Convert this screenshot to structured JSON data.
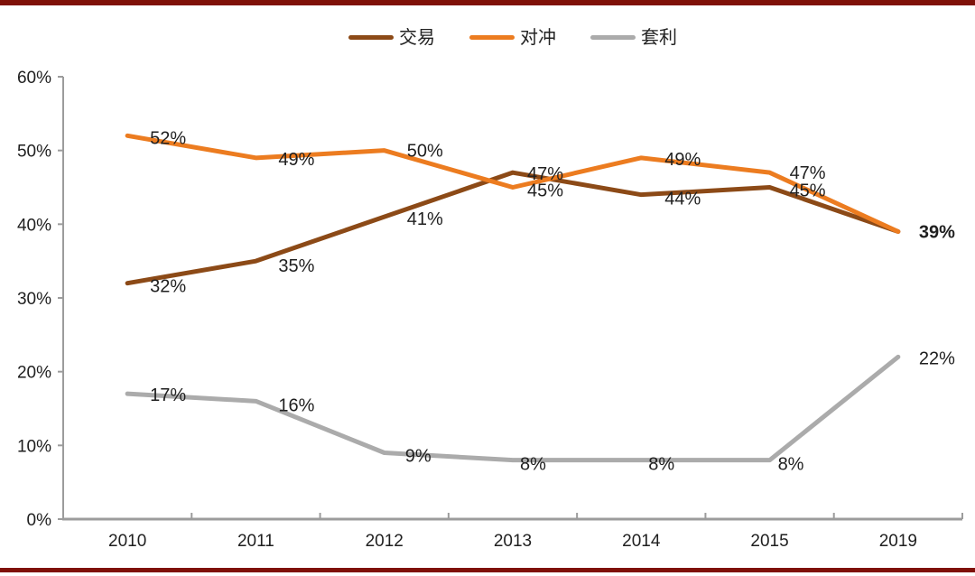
{
  "page": {
    "background": "#FFFFFF",
    "top_bar_color": "#7F1108",
    "bottom_bar_color": "#7F1108"
  },
  "chart_data": {
    "type": "line",
    "title": "",
    "xlabel": "",
    "ylabel": "",
    "categories": [
      "2010",
      "2011",
      "2012",
      "2013",
      "2014",
      "2015",
      "2019"
    ],
    "series": [
      {
        "name": "交易",
        "color": "#8C4A17",
        "values": [
          32,
          35,
          41,
          47,
          44,
          45,
          39
        ],
        "point_labels": [
          {
            "text": "32%",
            "dx": 25,
            "dy": 4
          },
          {
            "text": "35%",
            "dx": 25,
            "dy": 6
          },
          {
            "text": "41%",
            "dx": 25,
            "dy": 3
          },
          {
            "text": "47%",
            "dx": 16,
            "dy": 2
          },
          {
            "text": "44%",
            "dx": 26,
            "dy": 5
          },
          {
            "text": "45%",
            "dx": 22,
            "dy": 4
          },
          null
        ]
      },
      {
        "name": "对冲",
        "color": "#EC7C20",
        "values": [
          52,
          49,
          50,
          45,
          49,
          47,
          39
        ],
        "point_labels": [
          {
            "text": "52%",
            "dx": 25,
            "dy": 3
          },
          {
            "text": "49%",
            "dx": 25,
            "dy": 2
          },
          {
            "text": "50%",
            "dx": 25,
            "dy": 1
          },
          {
            "text": "45%",
            "dx": 16,
            "dy": 4
          },
          {
            "text": "49%",
            "dx": 26,
            "dy": 2
          },
          {
            "text": "47%",
            "dx": 22,
            "dy": 1
          },
          {
            "text": "39%",
            "dx": 23,
            "dy": 1,
            "bold": true
          }
        ]
      },
      {
        "name": "套利",
        "color": "#ABABAB",
        "values": [
          17,
          16,
          9,
          8,
          8,
          8,
          22
        ],
        "point_labels": [
          {
            "text": "17%",
            "dx": 25,
            "dy": 2
          },
          {
            "text": "16%",
            "dx": 25,
            "dy": 5
          },
          {
            "text": "9%",
            "dx": 23,
            "dy": 4
          },
          {
            "text": "8%",
            "dx": 8,
            "dy": 5
          },
          {
            "text": "8%",
            "dx": 8,
            "dy": 5
          },
          {
            "text": "8%",
            "dx": 9,
            "dy": 5
          },
          {
            "text": "22%",
            "dx": 23,
            "dy": 2
          }
        ]
      }
    ],
    "ylim": [
      0,
      60
    ],
    "ytick_step": 10,
    "ytick_labels": [
      "0%",
      "10%",
      "20%",
      "30%",
      "40%",
      "50%",
      "60%"
    ],
    "legend_position": "top-center",
    "grid": false,
    "axis_color": "#9C9C9C",
    "text_color": "#1F1F1F",
    "line_width": 5
  }
}
